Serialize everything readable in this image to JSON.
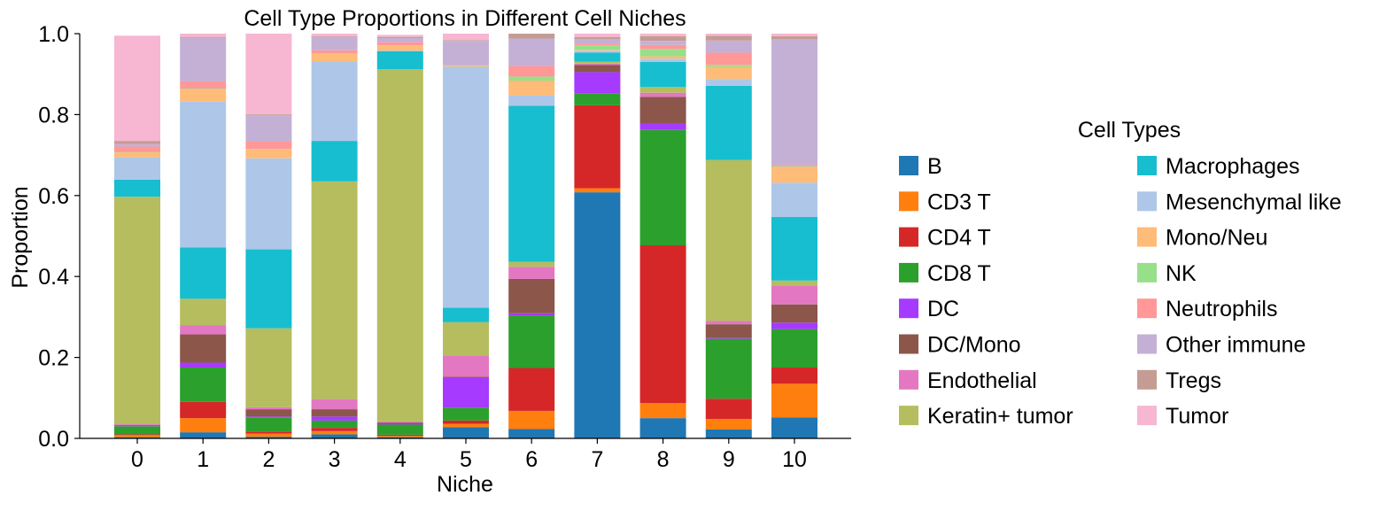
{
  "chart_data": {
    "type": "bar",
    "stacked": true,
    "title": "Cell Type Proportions in Different Cell Niches",
    "xlabel": "Niche",
    "ylabel": "Proportion",
    "ylim": [
      0,
      1.0
    ],
    "yticks": [
      "0.0",
      "0.2",
      "0.4",
      "0.6",
      "0.8",
      "1.0"
    ],
    "categories": [
      "0",
      "1",
      "2",
      "3",
      "4",
      "5",
      "6",
      "7",
      "8",
      "9",
      "10"
    ],
    "legend": {
      "title": "Cell Types",
      "placement": "right",
      "columns": 2
    },
    "series": [
      {
        "name": "B",
        "color": "#1f77b4",
        "values": [
          0.003,
          0.015,
          0.004,
          0.01,
          0.003,
          0.028,
          0.023,
          0.608,
          0.05,
          0.022,
          0.052
        ]
      },
      {
        "name": "CD3 T",
        "color": "#ff7f0e",
        "values": [
          0.005,
          0.035,
          0.008,
          0.008,
          0.003,
          0.008,
          0.045,
          0.01,
          0.037,
          0.026,
          0.083
        ]
      },
      {
        "name": "CD4 T",
        "color": "#d62728",
        "values": [
          0.002,
          0.04,
          0.005,
          0.008,
          0.003,
          0.008,
          0.106,
          0.205,
          0.39,
          0.05,
          0.04
        ]
      },
      {
        "name": "CD8 T",
        "color": "#2ca02c",
        "values": [
          0.02,
          0.085,
          0.035,
          0.018,
          0.025,
          0.032,
          0.13,
          0.03,
          0.285,
          0.148,
          0.095
        ]
      },
      {
        "name": "DC",
        "color": "#a63aff",
        "values": [
          0.001,
          0.012,
          0.002,
          0.01,
          0.001,
          0.074,
          0.005,
          0.052,
          0.016,
          0.002,
          0.016
        ]
      },
      {
        "name": "DC/Mono",
        "color": "#8c564b",
        "values": [
          0.002,
          0.07,
          0.018,
          0.018,
          0.004,
          0.002,
          0.085,
          0.018,
          0.066,
          0.034,
          0.045
        ]
      },
      {
        "name": "Endothelial",
        "color": "#e377c2",
        "values": [
          0.002,
          0.022,
          0.005,
          0.025,
          0.003,
          0.053,
          0.03,
          0.003,
          0.01,
          0.008,
          0.047
        ]
      },
      {
        "name": "Keratin+ tumor",
        "color": "#b5bd5f",
        "values": [
          0.562,
          0.066,
          0.195,
          0.538,
          0.87,
          0.082,
          0.012,
          0.005,
          0.014,
          0.398,
          0.012
        ]
      },
      {
        "name": "Macrophages",
        "color": "#17becf",
        "values": [
          0.042,
          0.127,
          0.195,
          0.1,
          0.045,
          0.036,
          0.386,
          0.022,
          0.062,
          0.183,
          0.157
        ]
      },
      {
        "name": "Mesenchymal like",
        "color": "#aec7e8",
        "values": [
          0.055,
          0.36,
          0.225,
          0.197,
          0.001,
          0.595,
          0.025,
          0.005,
          0.008,
          0.017,
          0.085
        ]
      },
      {
        "name": "Mono/Neu",
        "color": "#ffbb78",
        "values": [
          0.012,
          0.03,
          0.022,
          0.018,
          0.012,
          0.002,
          0.037,
          0.002,
          0.006,
          0.03,
          0.038
        ]
      },
      {
        "name": "NK",
        "color": "#98df8a",
        "values": [
          0.001,
          0.002,
          0.001,
          0.001,
          0.001,
          0.001,
          0.01,
          0.011,
          0.018,
          0.005,
          0.002
        ]
      },
      {
        "name": "Neutrophils",
        "color": "#ff9896",
        "values": [
          0.014,
          0.018,
          0.018,
          0.008,
          0.008,
          0.001,
          0.026,
          0.004,
          0.01,
          0.03,
          0.004
        ]
      },
      {
        "name": "Other immune",
        "color": "#c5b0d5",
        "values": [
          0.006,
          0.108,
          0.066,
          0.033,
          0.01,
          0.06,
          0.068,
          0.012,
          0.01,
          0.03,
          0.31
        ]
      },
      {
        "name": "Tregs",
        "color": "#c49c94",
        "values": [
          0.008,
          0.002,
          0.002,
          0.002,
          0.003,
          0.002,
          0.012,
          0.005,
          0.012,
          0.012,
          0.008
        ]
      },
      {
        "name": "Tumor",
        "color": "#f7b6d2",
        "values": [
          0.26,
          0.008,
          0.199,
          0.006,
          0.005,
          0.016,
          0.0,
          0.008,
          0.006,
          0.005,
          0.006
        ]
      }
    ]
  }
}
